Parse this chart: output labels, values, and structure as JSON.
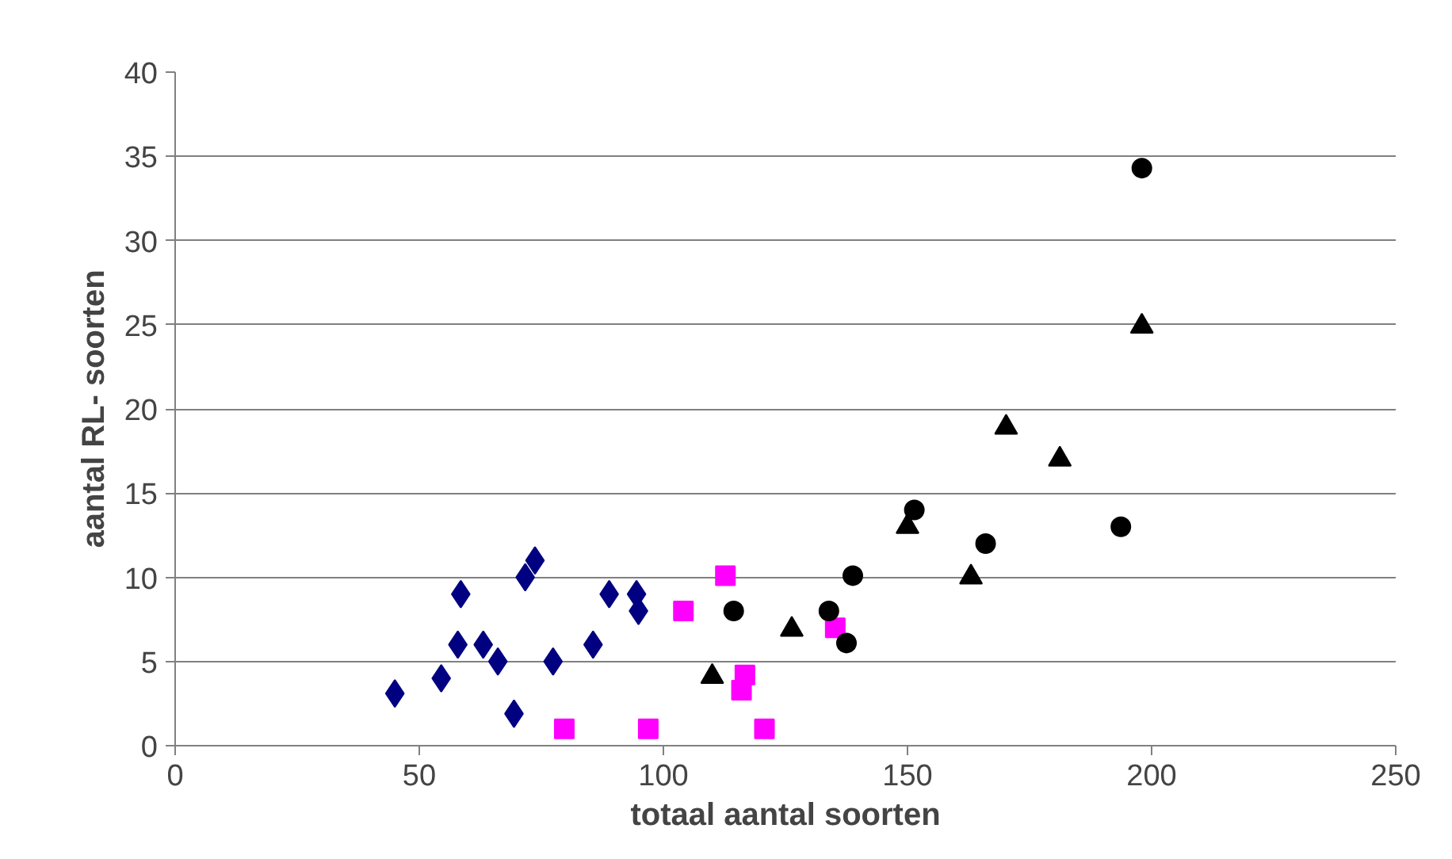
{
  "chart_data": {
    "type": "scatter",
    "xlabel": "totaal aantal soorten",
    "ylabel": "aantal RL- soorten",
    "xlim": [
      0,
      250
    ],
    "ylim": [
      0,
      40
    ],
    "xticks": [
      0,
      50,
      100,
      150,
      200,
      250
    ],
    "yticks": [
      0,
      5,
      10,
      15,
      20,
      25,
      30,
      35,
      40
    ],
    "grid": "y",
    "series": [
      {
        "color": "#000080",
        "marker": "diamond",
        "x": [
          45,
          54.5,
          58.5,
          57.9,
          63.1,
          66.1,
          69.4,
          71.7,
          73.7,
          77.4,
          85.6,
          88.9,
          94.5,
          94.9
        ],
        "values": [
          3.1,
          4,
          9,
          6,
          6,
          5,
          1.9,
          10,
          11,
          5,
          6,
          9,
          9,
          8
        ]
      },
      {
        "color": "#ff00ff",
        "marker": "square",
        "x": [
          79.7,
          96.9,
          104.1,
          112.7,
          116.7,
          116,
          120.7,
          135.2
        ],
        "values": [
          1,
          1,
          8,
          10.1,
          4.2,
          3.3,
          1,
          7
        ]
      },
      {
        "color": "#000000",
        "marker": "triangle",
        "x": [
          110,
          126.3,
          150,
          163,
          170.2,
          181.2,
          198
        ],
        "values": [
          4.1,
          6.9,
          13,
          10,
          18.9,
          17,
          24.9
        ]
      },
      {
        "color": "#000000",
        "marker": "circle",
        "x": [
          114.4,
          133.9,
          137.5,
          138.8,
          151.4,
          166,
          193.7,
          198
        ],
        "values": [
          8,
          8,
          6.1,
          10.1,
          14,
          12,
          13,
          34.3
        ]
      }
    ]
  }
}
